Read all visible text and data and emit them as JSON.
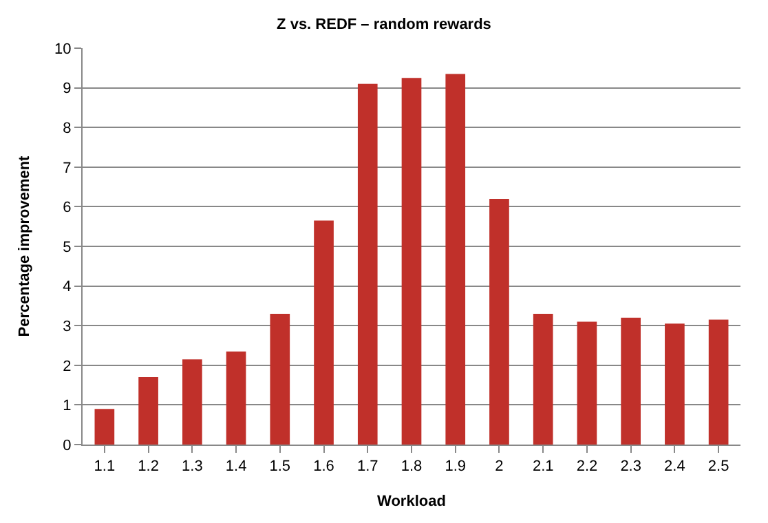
{
  "chart_data": {
    "type": "bar",
    "title": "Z vs. REDF – random rewards",
    "xlabel": "Workload",
    "ylabel": "Percentage improvement",
    "categories": [
      "1.1",
      "1.2",
      "1.3",
      "1.4",
      "1.5",
      "1.6",
      "1.7",
      "1.8",
      "1.9",
      "2",
      "2.1",
      "2.2",
      "2.3",
      "2.4",
      "2.5"
    ],
    "values": [
      0.9,
      1.7,
      2.15,
      2.35,
      3.3,
      5.65,
      9.1,
      9.25,
      9.35,
      6.2,
      3.3,
      3.1,
      3.2,
      3.05,
      3.15
    ],
    "color": "#c0302a",
    "ylim": [
      0,
      10
    ],
    "yticks": [
      0,
      1,
      2,
      3,
      4,
      5,
      6,
      7,
      8,
      9,
      10
    ],
    "grid": "y",
    "legend": false
  }
}
